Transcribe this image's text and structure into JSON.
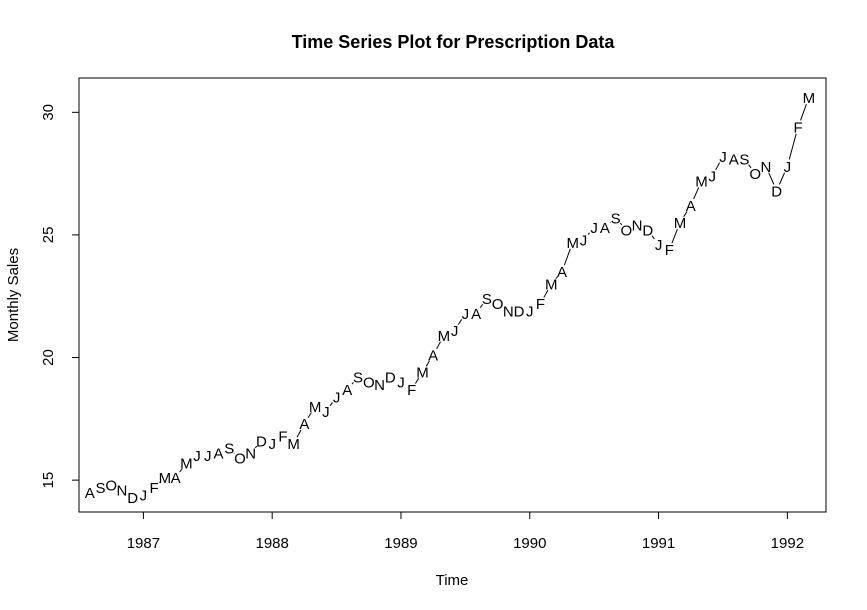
{
  "chart_data": {
    "type": "line",
    "title": "Time Series Plot for Prescription Data",
    "xlabel": "Time",
    "ylabel": "Monthly Sales",
    "xlim": [
      1986.5,
      1992.3
    ],
    "ylim": [
      13.7,
      31.4
    ],
    "x_ticks": [
      1987,
      1988,
      1989,
      1990,
      1991,
      1992
    ],
    "x_tick_labels": [
      "1987",
      "1988",
      "1989",
      "1990",
      "1991",
      "1992"
    ],
    "y_ticks": [
      15,
      20,
      25,
      30
    ],
    "y_tick_labels": [
      "15",
      "20",
      "25",
      "30"
    ],
    "grid": false,
    "point_symbols": "month initials",
    "series": [
      {
        "start": "1986-08",
        "frequency": "monthly",
        "labels": [
          "A",
          "S",
          "O",
          "N",
          "D",
          "J",
          "F",
          "M",
          "A",
          "M",
          "J",
          "J",
          "A",
          "S",
          "O",
          "N",
          "D",
          "J",
          "F",
          "M",
          "A",
          "M",
          "J",
          "J",
          "A",
          "S",
          "O",
          "N",
          "D",
          "J",
          "F",
          "M",
          "A",
          "M",
          "J",
          "J",
          "A",
          "S",
          "O",
          "N",
          "D",
          "J",
          "F",
          "M",
          "A",
          "M",
          "J",
          "J",
          "A",
          "S",
          "O",
          "N",
          "D",
          "J",
          "F",
          "M",
          "A",
          "M",
          "J",
          "J",
          "A",
          "S",
          "O",
          "N",
          "D",
          "J",
          "F",
          "M"
        ],
        "values": [
          14.5,
          14.7,
          14.8,
          14.6,
          14.3,
          14.4,
          14.7,
          15.1,
          15.1,
          15.7,
          16.0,
          16.0,
          16.1,
          16.3,
          15.9,
          16.1,
          16.6,
          16.5,
          16.8,
          16.5,
          17.3,
          18.0,
          17.8,
          18.4,
          18.7,
          19.2,
          19.0,
          18.9,
          19.2,
          19.0,
          18.7,
          19.4,
          20.1,
          20.9,
          21.1,
          21.8,
          21.8,
          22.4,
          22.2,
          21.9,
          21.9,
          21.9,
          22.2,
          23.0,
          23.5,
          24.7,
          24.8,
          25.3,
          25.3,
          25.7,
          25.2,
          25.4,
          25.2,
          24.6,
          24.4,
          25.5,
          26.2,
          27.2,
          27.4,
          28.2,
          28.1,
          28.1,
          27.5,
          27.8,
          26.8,
          27.8,
          29.4,
          30.6
        ]
      }
    ]
  }
}
